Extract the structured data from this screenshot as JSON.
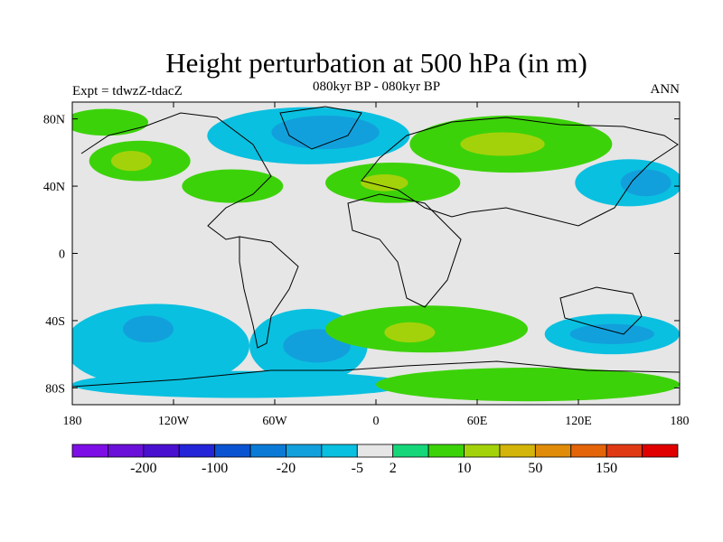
{
  "title": "Height perturbation at 500 hPa (in m)",
  "subtitle": "080kyr BP - 080kyr BP",
  "experiment_label": "Expt = tdwzZ-tdacZ",
  "season_label": "ANN",
  "map": {
    "projection": "cylindrical-equidistant",
    "lon_range": [
      -180,
      180
    ],
    "lat_range": [
      -90,
      90
    ],
    "x_ticks": [
      {
        "lon": -180,
        "label": "180"
      },
      {
        "lon": -120,
        "label": "120W"
      },
      {
        "lon": -60,
        "label": "60W"
      },
      {
        "lon": 0,
        "label": "0"
      },
      {
        "lon": 60,
        "label": "60E"
      },
      {
        "lon": 120,
        "label": "120E"
      },
      {
        "lon": 180,
        "label": "180"
      }
    ],
    "y_ticks": [
      {
        "lat": 80,
        "label": "80N"
      },
      {
        "lat": 40,
        "label": "40N"
      },
      {
        "lat": 0,
        "label": "0"
      },
      {
        "lat": -40,
        "label": "40S"
      },
      {
        "lat": -80,
        "label": "80S"
      }
    ],
    "background_color": "#e6e6e6",
    "regions": [
      {
        "name": "arctic-canada-greenland",
        "lon": -40,
        "lat": 70,
        "rlon": 60,
        "rlat": 17,
        "level": 1
      },
      {
        "name": "arctic-canada-greenland-core",
        "lon": -30,
        "lat": 72,
        "rlon": 32,
        "rlat": 10,
        "level": 0
      },
      {
        "name": "north-pacific-high",
        "lon": -140,
        "lat": 55,
        "rlon": 30,
        "rlat": 12,
        "level": 3
      },
      {
        "name": "north-pacific-high-core",
        "lon": -145,
        "lat": 55,
        "rlon": 12,
        "rlat": 6,
        "level": 4
      },
      {
        "name": "arctic-pacific-high",
        "lon": -160,
        "lat": 78,
        "rlon": 25,
        "rlat": 8,
        "level": 3
      },
      {
        "name": "north-america-high",
        "lon": -85,
        "lat": 40,
        "rlon": 30,
        "rlat": 10,
        "level": 3
      },
      {
        "name": "europe-high",
        "lon": 10,
        "lat": 42,
        "rlon": 40,
        "rlat": 12,
        "level": 3
      },
      {
        "name": "europe-high-core",
        "lon": 5,
        "lat": 42,
        "rlon": 14,
        "rlat": 5,
        "level": 4
      },
      {
        "name": "siberia-high",
        "lon": 80,
        "lat": 65,
        "rlon": 60,
        "rlat": 17,
        "level": 3
      },
      {
        "name": "siberia-high-core",
        "lon": 75,
        "lat": 65,
        "rlon": 25,
        "rlat": 7,
        "level": 4
      },
      {
        "name": "north-west-pacific-low",
        "lon": 150,
        "lat": 42,
        "rlon": 32,
        "rlat": 14,
        "level": 1
      },
      {
        "name": "north-west-pacific-low-core",
        "lon": 160,
        "lat": 42,
        "rlon": 15,
        "rlat": 8,
        "level": 0
      },
      {
        "name": "southern-ocean-pacific-low",
        "lon": -130,
        "lat": -55,
        "rlon": 55,
        "rlat": 25,
        "level": 1
      },
      {
        "name": "southern-ocean-pacific-low-core",
        "lon": -135,
        "lat": -45,
        "rlon": 15,
        "rlat": 8,
        "level": 0
      },
      {
        "name": "south-atlantic-low",
        "lon": -40,
        "lat": -55,
        "rlon": 35,
        "rlat": 22,
        "level": 1
      },
      {
        "name": "south-atlantic-low-core",
        "lon": -35,
        "lat": -55,
        "rlon": 20,
        "rlat": 10,
        "level": 0
      },
      {
        "name": "south-indian-high",
        "lon": 30,
        "lat": -45,
        "rlon": 60,
        "rlat": 14,
        "level": 3
      },
      {
        "name": "south-indian-high-core",
        "lon": 20,
        "lat": -47,
        "rlon": 15,
        "rlat": 6,
        "level": 4
      },
      {
        "name": "australia-low",
        "lon": 140,
        "lat": -48,
        "rlon": 40,
        "rlat": 12,
        "level": 1
      },
      {
        "name": "australia-low-core",
        "lon": 140,
        "lat": -48,
        "rlon": 25,
        "rlat": 6,
        "level": 0
      },
      {
        "name": "antarctic-low",
        "lon": -80,
        "lat": -78,
        "rlon": 100,
        "rlat": 8,
        "level": 1
      },
      {
        "name": "antarctic-high",
        "lon": 90,
        "lat": -78,
        "rlon": 90,
        "rlat": 10,
        "level": 3
      }
    ]
  },
  "colorbar": {
    "colors": [
      "#7e0ee6",
      "#6a10d8",
      "#4a10d0",
      "#2424d8",
      "#0a54d2",
      "#0a7ad6",
      "#12a0dc",
      "#0ac0e0",
      "#e6e6e6",
      "#16d67a",
      "#3cd20a",
      "#a4d20a",
      "#d2b40a",
      "#e08c0a",
      "#e4640a",
      "#e03a14",
      "#e00000"
    ],
    "labels": [
      {
        "after_box": 2,
        "text": "-200"
      },
      {
        "after_box": 4,
        "text": "-100"
      },
      {
        "after_box": 6,
        "text": "-20"
      },
      {
        "after_box": 8,
        "text": "-5"
      },
      {
        "after_box": 9,
        "text": "2"
      },
      {
        "after_box": 11,
        "text": "10"
      },
      {
        "after_box": 13,
        "text": "50"
      },
      {
        "after_box": 15,
        "text": "150"
      }
    ]
  }
}
